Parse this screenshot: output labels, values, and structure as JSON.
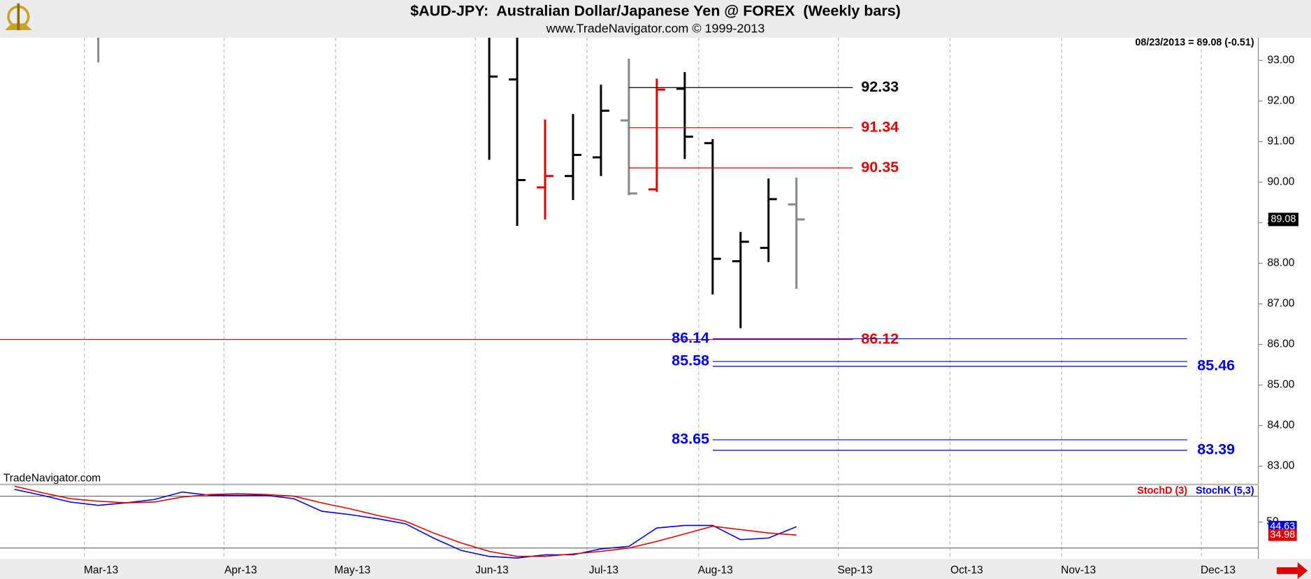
{
  "chart_data": [
    {
      "type": "ohlc",
      "title": "$AUD-JPY:  Australian Dollar/Japanese Yen @ FOREX  (Weekly bars)",
      "subtitle": "www.TradeNavigator.com © 1999-2013",
      "last_value_text": "08/23/2013 = 89.08 (-0.51)",
      "watermark": "TradeNavigator.com",
      "x": [
        0.5,
        14.5,
        15.5,
        16.5,
        17.5,
        18.5,
        19.5,
        20.5,
        21.5,
        22.5,
        23.5,
        24.5,
        25.5
      ],
      "open": [
        null,
        null,
        92.53,
        89.87,
        90.15,
        90.61,
        91.52,
        89.82,
        92.3,
        90.96,
        88.05,
        88.38,
        89.45
      ],
      "high": [
        93.9,
        93.9,
        93.9,
        91.54,
        91.68,
        92.4,
        93.04,
        92.55,
        92.71,
        91.06,
        88.77,
        90.09,
        90.11
      ],
      "low": [
        92.95,
        90.55,
        88.92,
        89.08,
        89.56,
        90.15,
        89.68,
        89.76,
        90.57,
        87.23,
        86.4,
        88.03,
        87.37
      ],
      "close": [
        null,
        92.6,
        90.05,
        90.15,
        90.67,
        91.76,
        89.72,
        92.28,
        91.12,
        88.11,
        88.53,
        89.58,
        89.08
      ],
      "colors": [
        "#888888",
        "#000000",
        "#000000",
        "#e00000",
        "#000000",
        "#000000",
        "#888888",
        "#e00000",
        "#000000",
        "#000000",
        "#000000",
        "#000000",
        "#888888"
      ],
      "xlim": [
        -3.02,
        42.04
      ],
      "xticks": [
        {
          "value": 0,
          "label": "Mar-13"
        },
        {
          "value": 5,
          "label": "Apr-13"
        },
        {
          "value": 9,
          "label": "May-13"
        },
        {
          "value": 14,
          "label": "Jun-13"
        },
        {
          "value": 18,
          "label": "Jul-13"
        },
        {
          "value": 22,
          "label": "Aug-13"
        },
        {
          "value": 27,
          "label": "Sep-13"
        },
        {
          "value": 31,
          "label": "Oct-13"
        },
        {
          "value": 35,
          "label": "Nov-13"
        },
        {
          "value": 40,
          "label": "Dec-13"
        }
      ],
      "ylim": [
        82.57,
        93.56
      ],
      "yticks": [
        {
          "value": 83,
          "label": "83.00"
        },
        {
          "value": 84,
          "label": "84.00"
        },
        {
          "value": 85,
          "label": "85.00"
        },
        {
          "value": 86,
          "label": "86.00"
        },
        {
          "value": 87,
          "label": "87.00"
        },
        {
          "value": 88,
          "label": "88.00"
        },
        {
          "value": 89,
          "label": "89.00"
        },
        {
          "value": 90,
          "label": "90.00"
        },
        {
          "value": 91,
          "label": "91.00"
        },
        {
          "value": 92,
          "label": "92.00"
        },
        {
          "value": 93,
          "label": "93.00"
        }
      ],
      "retracement_levels": [
        {
          "value": 92.33,
          "color": "#000000"
        },
        {
          "value": 91.34,
          "color": "#e00000"
        },
        {
          "value": 90.35,
          "color": "#e00000"
        },
        {
          "value": 86.12,
          "color": "#e00000",
          "extend_left": true
        }
      ],
      "target_color": "#0000e0",
      "target_levels": [
        {
          "value": 86.14,
          "side": "left"
        },
        {
          "value": 85.58,
          "side": "left"
        },
        {
          "value": 85.46,
          "side": "right"
        },
        {
          "value": 83.65,
          "side": "left"
        },
        {
          "value": 83.39,
          "side": "right"
        }
      ]
    },
    {
      "type": "line",
      "x": [
        -2.5,
        -1.5,
        -0.5,
        0.5,
        1.5,
        2.5,
        3.5,
        4.5,
        5.5,
        6.5,
        7.5,
        8.5,
        9.5,
        10.5,
        11.5,
        12.5,
        13.5,
        14.5,
        15.5,
        16.5,
        17.5,
        18.5,
        19.5,
        20.5,
        21.5,
        22.5,
        23.5,
        24.5,
        25.5
      ],
      "series": [
        {
          "name": "StochD (3)",
          "color": "#e00000",
          "values": [
            91.6,
            83.9,
            77.1,
            74.2,
            72.3,
            73.2,
            79.0,
            81.9,
            82.9,
            81.9,
            80.0,
            72.3,
            65.5,
            57.7,
            51.0,
            37.4,
            25.8,
            16.1,
            10.3,
            10.3,
            13.2,
            16.1,
            20.0,
            27.7,
            36.4,
            45.2,
            41.3,
            37.4,
            34.98
          ]
        },
        {
          "name": "StochK (5,3)",
          "color": "#0000e0",
          "values": [
            87.8,
            81.0,
            73.2,
            69.4,
            72.3,
            76.1,
            84.8,
            81.0,
            81.0,
            81.0,
            77.1,
            62.6,
            58.7,
            53.9,
            48.1,
            31.6,
            17.1,
            10.3,
            8.4,
            12.2,
            12.2,
            19.0,
            21.9,
            43.2,
            46.1,
            46.1,
            29.7,
            31.6,
            44.63
          ]
        }
      ],
      "xlim": [
        -3.02,
        42.04
      ],
      "ylim": [
        7.4,
        92.6
      ],
      "yticks": [
        50
      ],
      "levels": [
        80,
        20
      ]
    }
  ]
}
